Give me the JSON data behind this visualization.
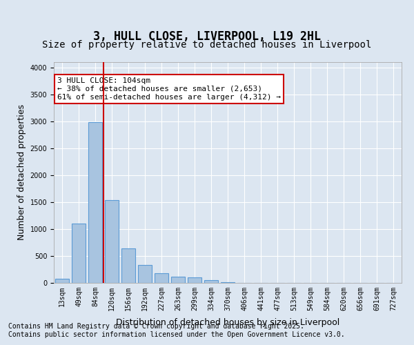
{
  "title": "3, HULL CLOSE, LIVERPOOL, L19 2HL",
  "subtitle": "Size of property relative to detached houses in Liverpool",
  "xlabel": "Distribution of detached houses by size in Liverpool",
  "ylabel": "Number of detached properties",
  "categories": [
    "13sqm",
    "49sqm",
    "84sqm",
    "120sqm",
    "156sqm",
    "192sqm",
    "227sqm",
    "263sqm",
    "299sqm",
    "334sqm",
    "370sqm",
    "406sqm",
    "441sqm",
    "477sqm",
    "513sqm",
    "549sqm",
    "584sqm",
    "620sqm",
    "656sqm",
    "691sqm",
    "727sqm"
  ],
  "values": [
    80,
    1100,
    2980,
    1540,
    640,
    330,
    185,
    115,
    100,
    45,
    10,
    5,
    3,
    2,
    1,
    1,
    0,
    0,
    0,
    0,
    0
  ],
  "bar_color": "#a8c4e0",
  "bar_edge_color": "#5b9bd5",
  "background_color": "#dce6f1",
  "plot_bg_color": "#dce6f1",
  "grid_color": "#ffffff",
  "vline_x": 2,
  "vline_color": "#cc0000",
  "ylim": [
    0,
    4100
  ],
  "annotation_text": "3 HULL CLOSE: 104sqm\n← 38% of detached houses are smaller (2,653)\n61% of semi-detached houses are larger (4,312) →",
  "annotation_box_color": "#ffffff",
  "annotation_box_edge": "#cc0000",
  "footer_line1": "Contains HM Land Registry data © Crown copyright and database right 2025.",
  "footer_line2": "Contains public sector information licensed under the Open Government Licence v3.0.",
  "title_fontsize": 12,
  "subtitle_fontsize": 10,
  "axis_label_fontsize": 9,
  "tick_fontsize": 7,
  "annotation_fontsize": 8,
  "footer_fontsize": 7
}
